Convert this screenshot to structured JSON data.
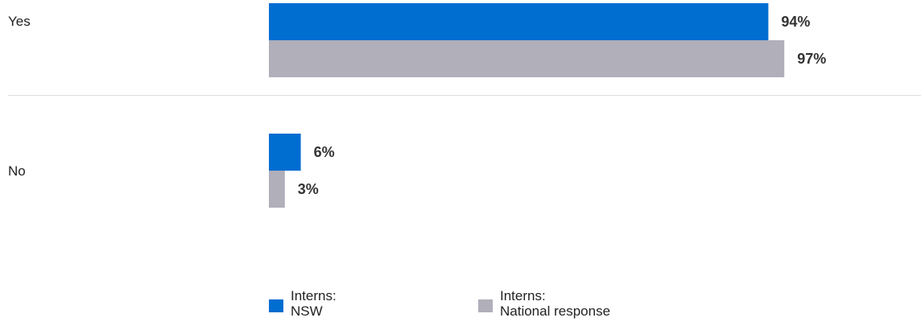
{
  "chart_data": {
    "type": "bar",
    "orientation": "horizontal",
    "categories": [
      "Yes",
      "No"
    ],
    "series": [
      {
        "name": "Interns: NSW",
        "legend_lines": [
          "Interns:",
          "NSW"
        ],
        "color": "#006DD1",
        "values": [
          94,
          6
        ],
        "labels": [
          "94%",
          "6%"
        ]
      },
      {
        "name": "Interns: National response",
        "legend_lines": [
          "Interns:",
          "National response"
        ],
        "color": "#B0AFBA",
        "values": [
          97,
          3
        ],
        "labels": [
          "97%",
          "3%"
        ]
      }
    ],
    "xlim": [
      0,
      100
    ],
    "unit": "%",
    "grid": false,
    "legend_position": "bottom"
  }
}
